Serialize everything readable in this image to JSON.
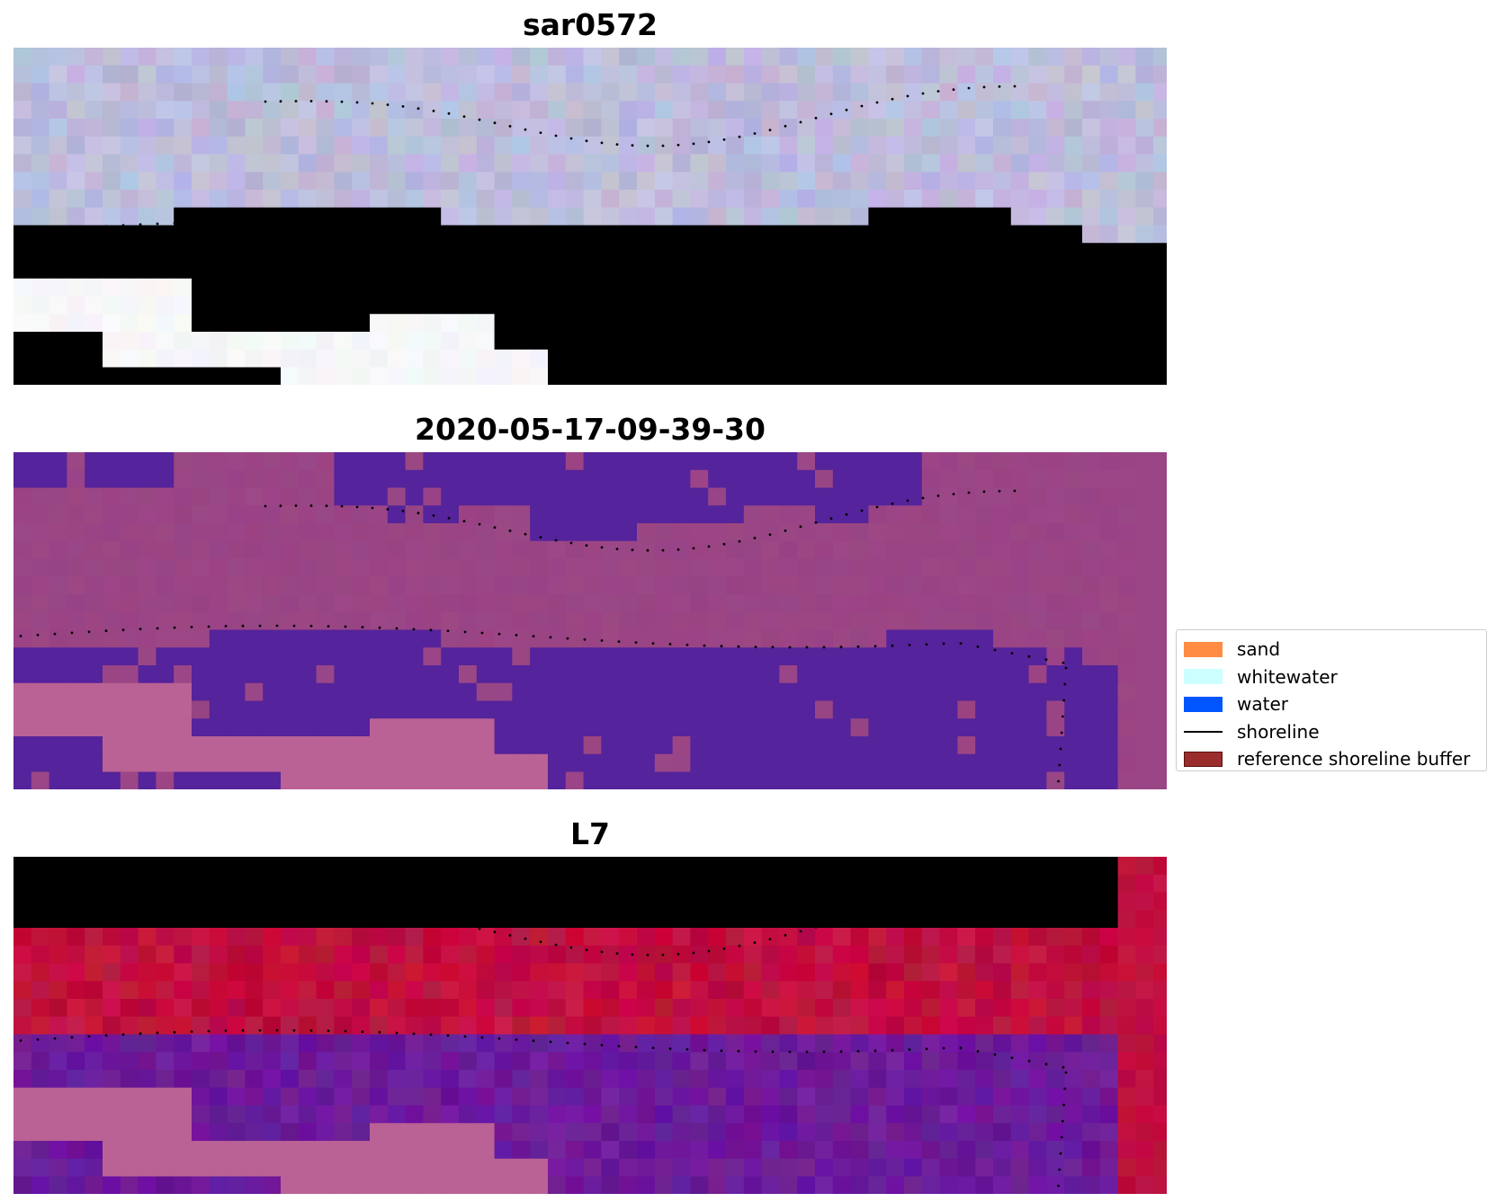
{
  "panels": [
    {
      "title": "sar0572",
      "kind": "rgb"
    },
    {
      "title": "2020-05-17-09-39-30",
      "kind": "classified"
    },
    {
      "title": "L7",
      "kind": "index"
    }
  ],
  "legend": {
    "items": [
      {
        "label": "sand",
        "color": "#ff8c42",
        "type": "patch"
      },
      {
        "label": "whitewater",
        "color": "#ccffff",
        "type": "patch"
      },
      {
        "label": "water",
        "color": "#0055ff",
        "type": "patch"
      },
      {
        "label": "shoreline",
        "color": "#000000",
        "type": "line"
      },
      {
        "label": "reference shoreline buffer",
        "color": "#9b2c2c",
        "type": "patch",
        "edge": "#5a1010"
      }
    ]
  },
  "colors": {
    "rgb_upper": "#bcbcdc",
    "rgb_lower": "#e6e8f2",
    "nodata": "#ffffff",
    "class_dark": "#55239b",
    "class_magenta": "#9a4585",
    "class_pink": "#ba6195",
    "index_purple": "#6c1a9a",
    "index_red": "#c0103f",
    "index_pink": "#ba6195",
    "shoreline_dots": "#000000"
  }
}
